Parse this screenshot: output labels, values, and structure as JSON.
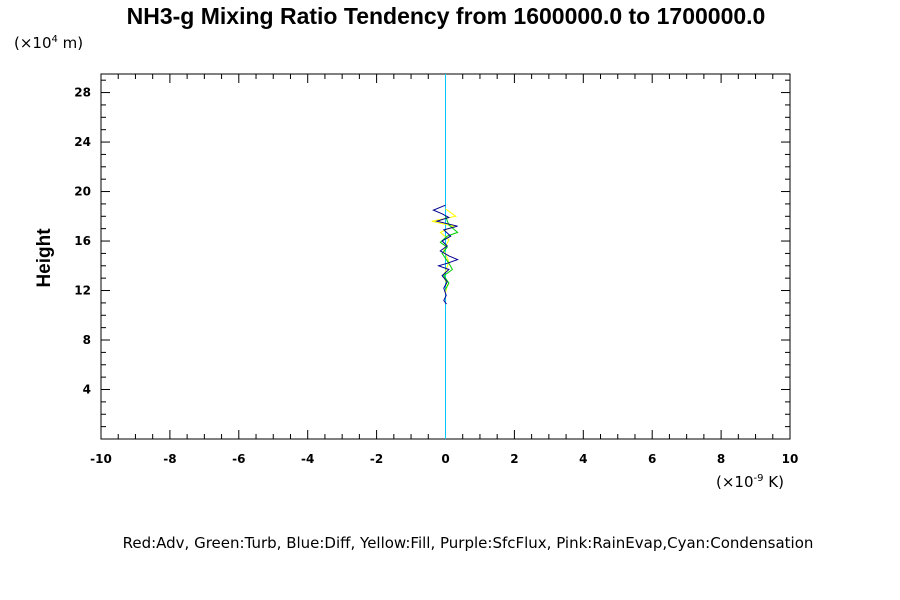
{
  "chart_data": {
    "type": "line",
    "title": "NH3-g Mixing Ratio Tendency from 1600000.0 to 1700000.0",
    "ylabel": "Height",
    "y_unit_base": "(×10",
    "y_unit_exp": "4",
    "y_unit_suffix": " m)",
    "x_unit_base": "(×10",
    "x_unit_exp": "-9",
    "x_unit_suffix": " K)",
    "xlim": [
      -10,
      10
    ],
    "ylim": [
      0,
      29.5
    ],
    "x_tick_values": [
      -10,
      -8,
      -6,
      -4,
      -2,
      0,
      2,
      4,
      6,
      8,
      10
    ],
    "x_tick_labels": [
      "-10",
      "-8",
      "-6",
      "-4",
      "-2",
      "0",
      "2",
      "4",
      "6",
      "8",
      "10"
    ],
    "y_tick_values": [
      4,
      8,
      12,
      16,
      20,
      24,
      28
    ],
    "y_tick_labels": [
      "4",
      "8",
      "12",
      "16",
      "20",
      "24",
      "28"
    ],
    "grid": false,
    "legend_text": "Red:Adv, Green:Turb, Blue:Diff, Yellow:Fill, Purple:SfcFlux, Pink:RainEvap,Cyan:Condensation",
    "series": [
      {
        "color": "#00c8ff",
        "points": [
          [
            0,
            0
          ],
          [
            0,
            29.5
          ]
        ]
      },
      {
        "color": "#ffff00",
        "points": [
          [
            0,
            18.6
          ],
          [
            0.3,
            18.0
          ],
          [
            -0.4,
            17.6
          ],
          [
            0.25,
            17.2
          ],
          [
            -0.15,
            16.7
          ],
          [
            0.1,
            16.1
          ],
          [
            -0.05,
            15.3
          ],
          [
            0.1,
            14.3
          ],
          [
            -0.05,
            13.2
          ],
          [
            0.05,
            12.4
          ],
          [
            0,
            11.8
          ]
        ]
      },
      {
        "color": "#00d000",
        "points": [
          [
            0,
            18.0
          ],
          [
            0.1,
            17.3
          ],
          [
            0.35,
            16.7
          ],
          [
            0.05,
            16.4
          ],
          [
            -0.15,
            15.9
          ],
          [
            0.05,
            15.5
          ],
          [
            -0.1,
            15.0
          ],
          [
            0.1,
            14.2
          ],
          [
            0.2,
            13.7
          ],
          [
            -0.05,
            13.2
          ],
          [
            0.1,
            12.6
          ],
          [
            0,
            12.1
          ]
        ]
      },
      {
        "color": "#000090",
        "points": [
          [
            0,
            18.9
          ],
          [
            -0.35,
            18.5
          ],
          [
            -0.1,
            18.2
          ],
          [
            0.1,
            17.9
          ],
          [
            -0.25,
            17.6
          ],
          [
            0.35,
            17.2
          ],
          [
            -0.05,
            16.9
          ],
          [
            0.15,
            16.4
          ],
          [
            -0.1,
            16.0
          ],
          [
            0.05,
            15.6
          ],
          [
            -0.15,
            15.2
          ],
          [
            0.1,
            14.8
          ],
          [
            0.35,
            14.5
          ],
          [
            0.05,
            14.2
          ],
          [
            -0.2,
            14.0
          ],
          [
            0.1,
            13.7
          ],
          [
            -0.1,
            13.2
          ],
          [
            0.05,
            12.7
          ],
          [
            -0.05,
            12.2
          ],
          [
            0.02,
            11.6
          ],
          [
            -0.05,
            11.2
          ],
          [
            0.03,
            10.9
          ]
        ]
      }
    ]
  }
}
